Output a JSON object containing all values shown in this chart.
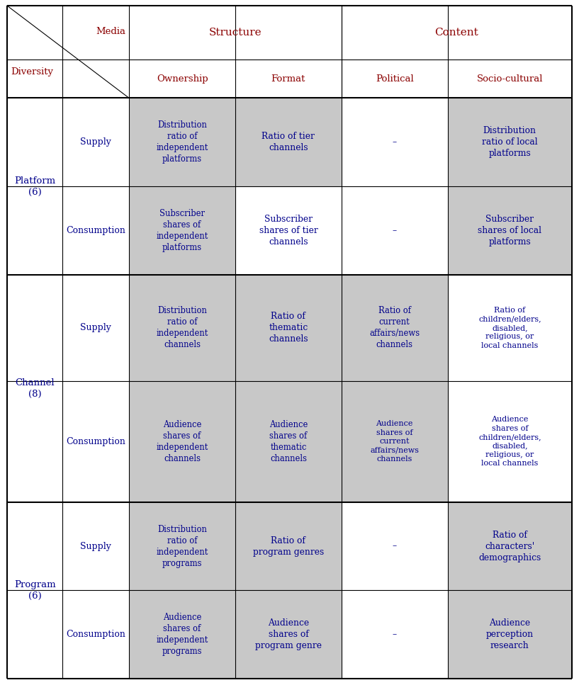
{
  "fig_width": 8.17,
  "fig_height": 9.67,
  "bg_color": "#ffffff",
  "header_text_color": "#8B0000",
  "cell_text_color": "#00008B",
  "border_color": "#000000",
  "shaded_color": "#C8C8C8",
  "white_color": "#FFFFFF",
  "row_groups": [
    {
      "label": "Platform\n(6)",
      "rows": [
        {
          "sub_label": "Supply",
          "cells": [
            "Distribution\nratio of\nindependent\nplatforms",
            "Ratio of tier\nchannels",
            "–",
            "Distribution\nratio of local\nplatforms"
          ],
          "shaded": [
            true,
            true,
            false,
            true
          ]
        },
        {
          "sub_label": "Consumption",
          "cells": [
            "Subscriber\nshares of\nindependent\nplatforms",
            "Subscriber\nshares of tier\nchannels",
            "–",
            "Subscriber\nshares of local\nplatforms"
          ],
          "shaded": [
            true,
            false,
            false,
            true
          ]
        }
      ]
    },
    {
      "label": "Channel\n(8)",
      "rows": [
        {
          "sub_label": "Supply",
          "cells": [
            "Distribution\nratio of\nindependent\nchannels",
            "Ratio of\nthematic\nchannels",
            "Ratio of\ncurrent\naffairs/news\nchannels",
            "Ratio of\nchildren/elders,\ndisabled,\nreligious, or\nlocal channels"
          ],
          "shaded": [
            true,
            true,
            true,
            false
          ]
        },
        {
          "sub_label": "Consumption",
          "cells": [
            "Audience\nshares of\nindependent\nchannels",
            "Audience\nshares of\nthematic\nchannels",
            "Audience\nshares of\ncurrent\naffairs/news\nchannels",
            "Audience\nshares of\nchildren/elders,\ndisabled,\nreligious, or\nlocal channels"
          ],
          "shaded": [
            true,
            true,
            true,
            false
          ]
        }
      ]
    },
    {
      "label": "Program\n(6)",
      "rows": [
        {
          "sub_label": "Supply",
          "cells": [
            "Distribution\nratio of\nindependent\nprograms",
            "Ratio of\nprogram genres",
            "–",
            "Ratio of\ncharacters'\ndemographics"
          ],
          "shaded": [
            true,
            true,
            false,
            true
          ]
        },
        {
          "sub_label": "Consumption",
          "cells": [
            "Audience\nshares of\nindependent\nprograms",
            "Audience\nshares of\nprogram genre",
            "–",
            "Audience\nperception\nresearch"
          ],
          "shaded": [
            true,
            true,
            false,
            true
          ]
        }
      ]
    }
  ]
}
